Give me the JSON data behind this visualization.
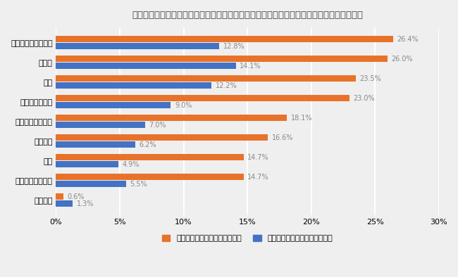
{
  "title": "コロナ禍での働き方の変化により、何を以前よりも重視したいと思うようになりましたか？",
  "categories": [
    "プライベートの活動",
    "暮らし",
    "家族",
    "働く意義・目的",
    "社会とのつながり",
    "今の仕事",
    "学び",
    "将来的なキャリア",
    "特にない"
  ],
  "positive_values": [
    26.4,
    26.0,
    23.5,
    23.0,
    18.1,
    16.6,
    14.7,
    14.7,
    0.6
  ],
  "negative_values": [
    12.8,
    14.1,
    12.2,
    9.0,
    7.0,
    6.2,
    4.9,
    5.5,
    1.3
  ],
  "positive_color": "#E8722A",
  "negative_color": "#4472C4",
  "positive_label": "ポジティブと受け止めている方",
  "negative_label": "ネガティブと受け止めている方",
  "xlim": [
    0,
    30
  ],
  "xtick_values": [
    0,
    5,
    10,
    15,
    20,
    25,
    30
  ],
  "background_color": "#EFEFEF",
  "grid_color": "#FFFFFF",
  "bar_height": 0.32,
  "bar_gap": 0.04,
  "title_fontsize": 9.5,
  "label_fontsize": 8,
  "tick_fontsize": 8,
  "value_fontsize": 7,
  "legend_fontsize": 8
}
